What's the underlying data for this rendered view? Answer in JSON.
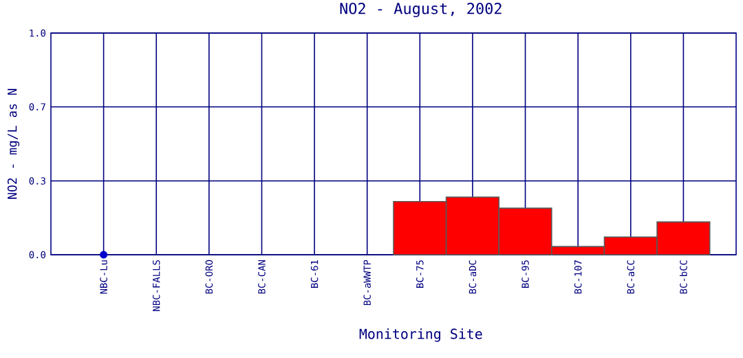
{
  "chart_data": {
    "type": "bar",
    "title": "NO2 - August, 2002",
    "xlabel": "Monitoring Site",
    "ylabel": "NO2 - mg/L as N",
    "categories": [
      "NBC-Lu",
      "NBC-FALLS",
      "BC-ORO",
      "BC-CAN",
      "BC-61",
      "BC-aWWTP",
      "BC-75",
      "BC-aDC",
      "BC-95",
      "BC-107",
      "BC-aCC",
      "BC-bCC"
    ],
    "series": [
      {
        "color": "#ff0000",
        "values": [
          null,
          null,
          null,
          null,
          null,
          null,
          0.24,
          0.26,
          0.21,
          0.037,
          0.08,
          0.148
        ]
      },
      {
        "type": "scatter",
        "color": "#0000cc",
        "marker": "circle",
        "values": [
          0,
          null,
          null,
          null,
          null,
          null,
          null,
          null,
          null,
          null,
          null,
          null
        ]
      }
    ],
    "ylim": [
      0,
      1
    ],
    "yticks": [
      {
        "value": 0,
        "label": "0.0"
      },
      {
        "value": 0.333,
        "label": "0.3"
      },
      {
        "value": 0.667,
        "label": "0.7"
      },
      {
        "value": 1,
        "label": "1.0"
      }
    ],
    "grid": true
  }
}
